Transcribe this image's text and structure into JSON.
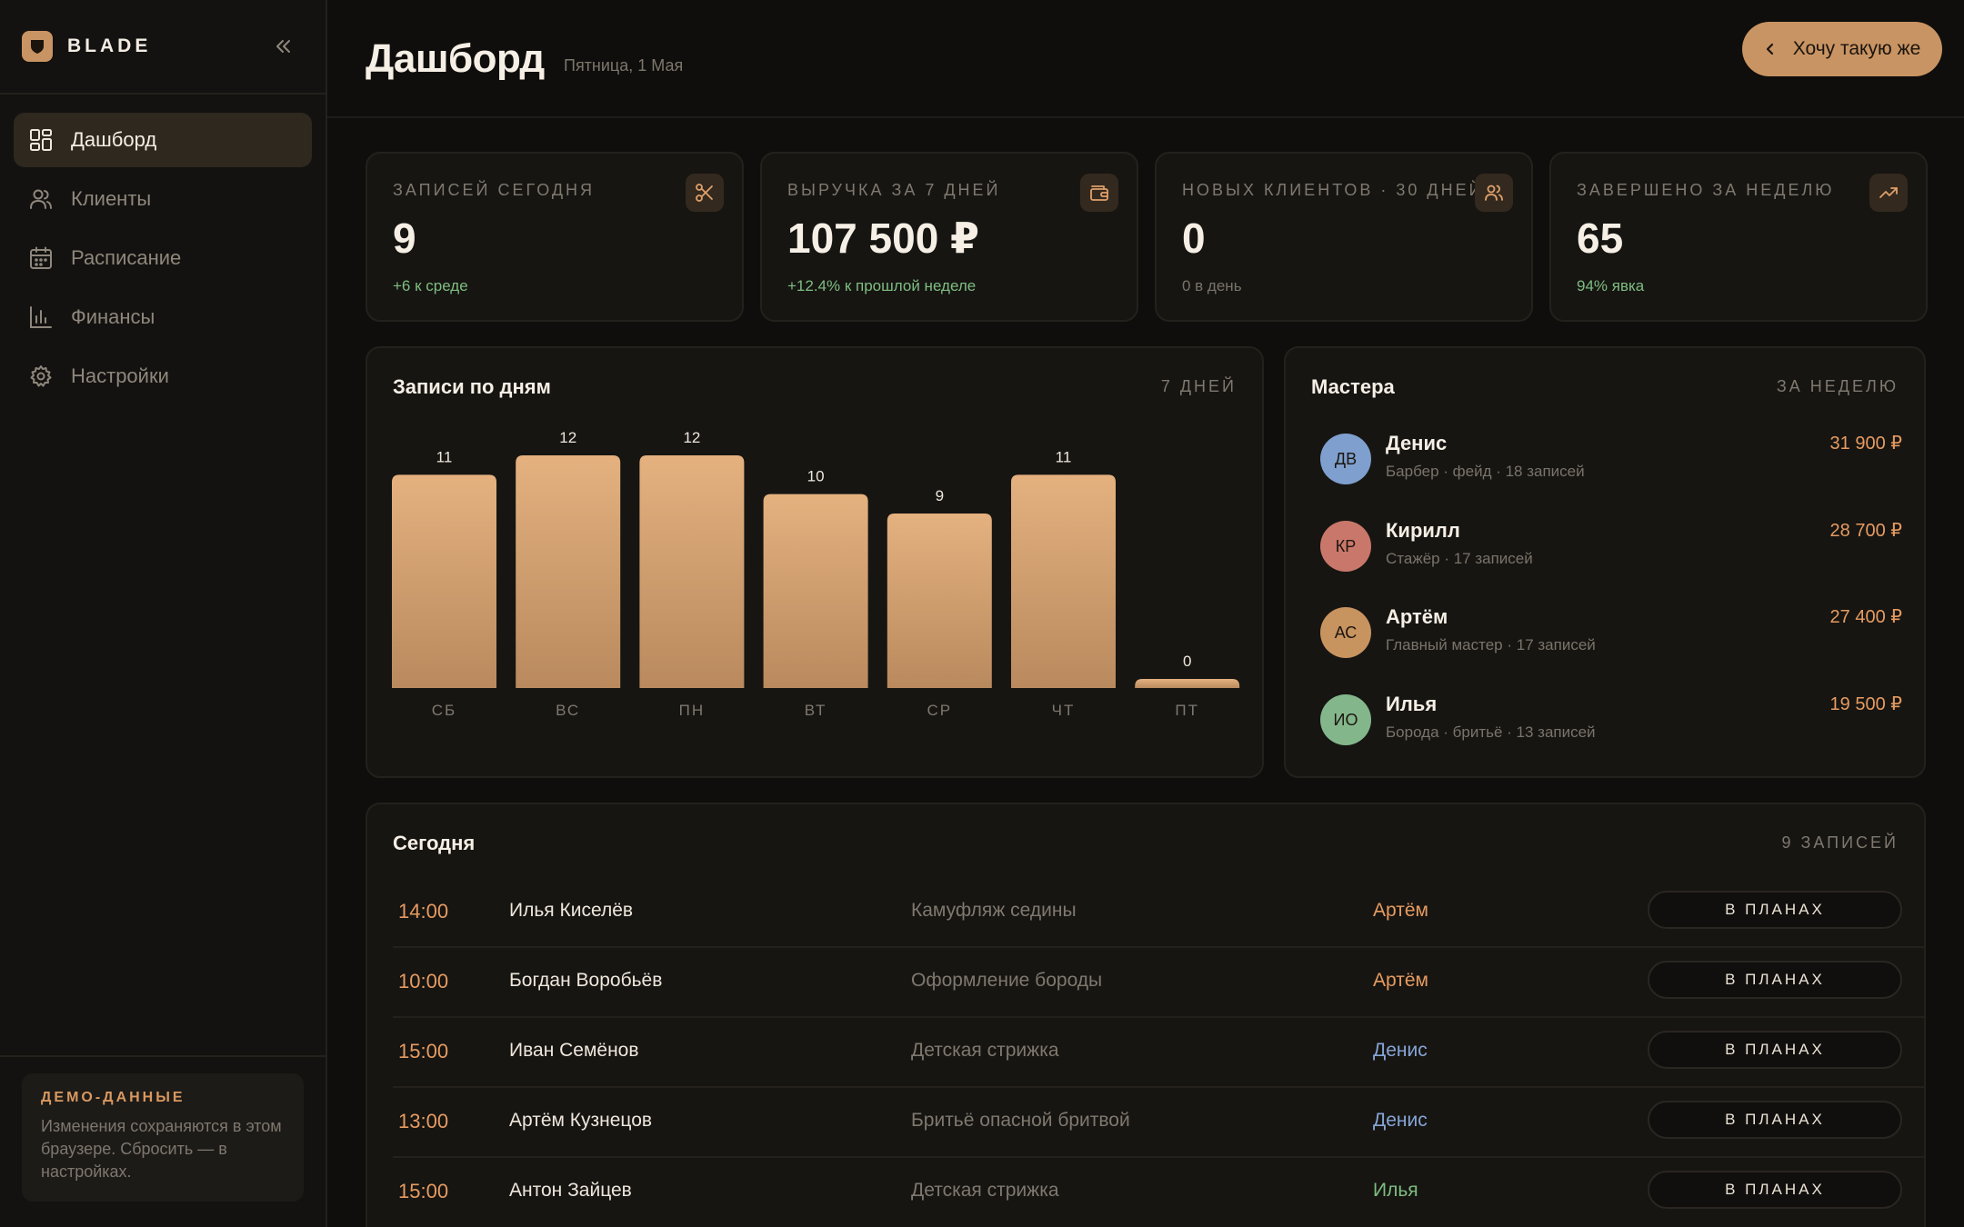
{
  "brand": {
    "name": "BLADE"
  },
  "sidebar": {
    "items": [
      {
        "label": "Дашборд",
        "icon": "dashboard-icon",
        "active": true
      },
      {
        "label": "Клиенты",
        "icon": "users-icon",
        "active": false
      },
      {
        "label": "Расписание",
        "icon": "calendar-icon",
        "active": false
      },
      {
        "label": "Финансы",
        "icon": "bar-chart-icon",
        "active": false
      },
      {
        "label": "Настройки",
        "icon": "gear-icon",
        "active": false
      }
    ],
    "demo": {
      "title": "ДЕМО-ДАННЫЕ",
      "text": "Изменения сохраняются в этом браузере. Сбросить — в настройках."
    }
  },
  "header": {
    "title": "Дашборд",
    "date": "Пятница, 1 Мая",
    "cta_label": "Хочу такую же"
  },
  "stats": [
    {
      "label": "ЗАПИСЕЙ СЕГОДНЯ",
      "value": "9",
      "sub": "+6 к среде",
      "icon": "scissors-icon"
    },
    {
      "label": "ВЫРУЧКА ЗА 7 ДНЕЙ",
      "value": "107 500 ₽",
      "sub": "+12.4% к прошлой неделе",
      "icon": "wallet-icon"
    },
    {
      "label": "НОВЫХ КЛИЕНТОВ · 30 ДНЕЙ",
      "value": "0",
      "sub": "0 в день",
      "icon": "users-icon"
    },
    {
      "label": "ЗАВЕРШЕНО ЗА НЕДЕЛЮ",
      "value": "65",
      "sub": "94% явка",
      "icon": "trending-up-icon"
    }
  ],
  "chart": {
    "title": "Записи по дням",
    "range_label": "7 ДНЕЙ"
  },
  "chart_data": {
    "type": "bar",
    "categories": [
      "СБ",
      "ВС",
      "ПН",
      "ВТ",
      "СР",
      "ЧТ",
      "ПТ"
    ],
    "values": [
      11,
      12,
      12,
      10,
      9,
      11,
      0
    ],
    "ylim": [
      0,
      12
    ],
    "grid": false,
    "bar_color_top": "#e4b17f",
    "bar_color_bottom": "#b98a5e"
  },
  "masters": {
    "title": "Мастера",
    "range_label": "ЗА НЕДЕЛЮ",
    "items": [
      {
        "initials": "ДВ",
        "name": "Денис",
        "meta": "Барбер · фейд · 18 записей",
        "amount": "31 900 ₽",
        "color": "#7f9fce"
      },
      {
        "initials": "КР",
        "name": "Кирилл",
        "meta": "Стажёр · 17 записей",
        "amount": "28 700 ₽",
        "color": "#c9776a"
      },
      {
        "initials": "АС",
        "name": "Артём",
        "meta": "Главный мастер · 17 записей",
        "amount": "27 400 ₽",
        "color": "#c7935f"
      },
      {
        "initials": "ИО",
        "name": "Илья",
        "meta": "Борода · бритьё · 13 записей",
        "amount": "19 500 ₽",
        "color": "#84b68b"
      }
    ]
  },
  "today": {
    "title": "Сегодня",
    "count_label": "9 ЗАПИСЕЙ",
    "rows": [
      {
        "time": "14:00",
        "client": "Илья Киселёв",
        "service": "Камуфляж седины",
        "master": "Артём",
        "master_color": "#e79b60",
        "status": "В ПЛАНАХ"
      },
      {
        "time": "10:00",
        "client": "Богдан Воробьёв",
        "service": "Оформление бороды",
        "master": "Артём",
        "master_color": "#e79b60",
        "status": "В ПЛАНАХ"
      },
      {
        "time": "15:00",
        "client": "Иван Семёнов",
        "service": "Детская стрижка",
        "master": "Денис",
        "master_color": "#86a5d6",
        "status": "В ПЛАНАХ"
      },
      {
        "time": "13:00",
        "client": "Артём Кузнецов",
        "service": "Бритьё опасной бритвой",
        "master": "Денис",
        "master_color": "#86a5d6",
        "status": "В ПЛАНАХ"
      },
      {
        "time": "15:00",
        "client": "Антон Зайцев",
        "service": "Детская стрижка",
        "master": "Илья",
        "master_color": "#7ebd80",
        "status": "В ПЛАНАХ"
      }
    ]
  },
  "colors": {
    "accent": "#c99463",
    "background": "#0f0e0c",
    "card": "#161512",
    "positive": "#7ebd80",
    "time": "#e79b60"
  }
}
